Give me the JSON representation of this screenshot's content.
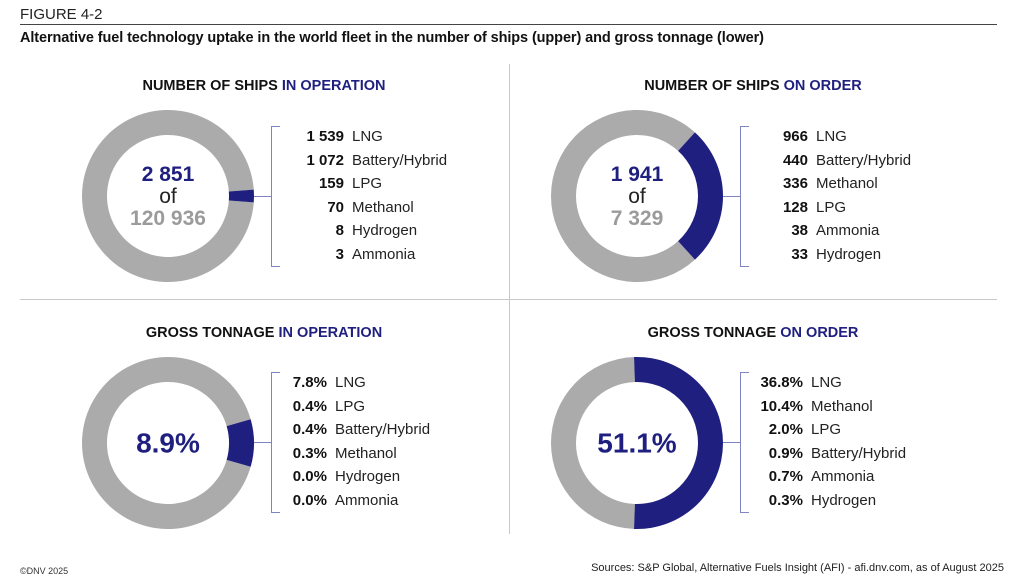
{
  "figure_label": "FIGURE 4-2",
  "figure_title": "Alternative fuel technology uptake in the world fleet in the number of ships (upper) and gross tonnage (lower)",
  "colors": {
    "highlight": "#1f1f7f",
    "rest": "#ababab",
    "bracket": "#7f85c4",
    "total_text": "#9b9b9b"
  },
  "chart_data": [
    {
      "type": "pie",
      "variant": "donut",
      "title_main": "NUMBER OF SHIPS ",
      "title_highlight": "IN OPERATION",
      "center_value": "2 851",
      "center_of": "of",
      "center_total": "120 936",
      "highlight_value": 2851,
      "total_value": 120936,
      "legend": [
        {
          "value": "1 539",
          "label": "LNG"
        },
        {
          "value": "1 072",
          "label": "Battery/Hybrid"
        },
        {
          "value": "159",
          "label": "LPG"
        },
        {
          "value": "70",
          "label": "Methanol"
        },
        {
          "value": "8",
          "label": "Hydrogen"
        },
        {
          "value": "3",
          "label": "Ammonia"
        }
      ]
    },
    {
      "type": "pie",
      "variant": "donut",
      "title_main": "NUMBER OF SHIPS ",
      "title_highlight": "ON ORDER",
      "center_value": "1 941",
      "center_of": "of",
      "center_total": "7 329",
      "highlight_value": 1941,
      "total_value": 7329,
      "legend": [
        {
          "value": "966",
          "label": "LNG"
        },
        {
          "value": "440",
          "label": "Battery/Hybrid"
        },
        {
          "value": "336",
          "label": "Methanol"
        },
        {
          "value": "128",
          "label": "LPG"
        },
        {
          "value": "38",
          "label": "Ammonia"
        },
        {
          "value": "33",
          "label": "Hydrogen"
        }
      ]
    },
    {
      "type": "pie",
      "variant": "donut",
      "title_main": "GROSS TONNAGE ",
      "title_highlight": "IN OPERATION",
      "center_pct": "8.9%",
      "highlight_value": 8.9,
      "total_value": 100,
      "legend": [
        {
          "value": "7.8%",
          "label": "LNG"
        },
        {
          "value": "0.4%",
          "label": "LPG"
        },
        {
          "value": "0.4%",
          "label": "Battery/Hybrid"
        },
        {
          "value": "0.3%",
          "label": "Methanol"
        },
        {
          "value": "0.0%",
          "label": "Hydrogen"
        },
        {
          "value": "0.0%",
          "label": "Ammonia"
        }
      ]
    },
    {
      "type": "pie",
      "variant": "donut",
      "title_main": "GROSS TONNAGE ",
      "title_highlight": "ON ORDER",
      "center_pct": "51.1%",
      "highlight_value": 51.1,
      "total_value": 100,
      "legend": [
        {
          "value": "36.8%",
          "label": "LNG"
        },
        {
          "value": "10.4%",
          "label": "Methanol"
        },
        {
          "value": "2.0%",
          "label": "LPG"
        },
        {
          "value": "0.9%",
          "label": "Battery/Hybrid"
        },
        {
          "value": "0.7%",
          "label": "Ammonia"
        },
        {
          "value": "0.3%",
          "label": "Hydrogen"
        }
      ]
    }
  ],
  "footer": {
    "copyright": "©DNV 2025",
    "sources": "Sources: S&P Global, Alternative Fuels Insight (AFI) - afi.dnv.com, as of August 2025"
  }
}
